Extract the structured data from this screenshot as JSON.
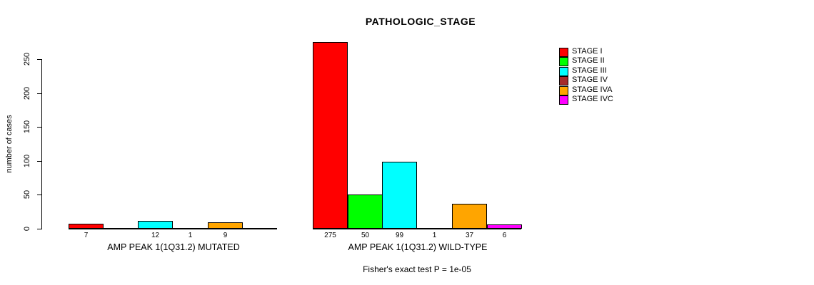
{
  "chart_data": {
    "type": "bar",
    "title": "PATHOLOGIC_STAGE",
    "ylabel": "number of cases",
    "ylim": [
      0,
      250
    ],
    "yticks": [
      0,
      50,
      100,
      150,
      200,
      250
    ],
    "grid": false,
    "legend_position": "right",
    "categories": [
      "AMP PEAK 1(1Q31.2) MUTATED",
      "AMP PEAK 1(1Q31.2) WILD-TYPE"
    ],
    "series": [
      {
        "name": "STAGE I",
        "color": "#FF0000",
        "values": [
          7,
          275
        ]
      },
      {
        "name": "STAGE II",
        "color": "#00FF00",
        "values": [
          0,
          50
        ]
      },
      {
        "name": "STAGE III",
        "color": "#00FFFF",
        "values": [
          12,
          99
        ]
      },
      {
        "name": "STAGE IV",
        "color": "#A52A2A",
        "values": [
          1,
          1
        ]
      },
      {
        "name": "STAGE IVA",
        "color": "#FFA500",
        "values": [
          9,
          37
        ]
      },
      {
        "name": "STAGE IVC",
        "color": "#FF00FF",
        "values": [
          0,
          6
        ]
      }
    ],
    "bar_label_rule": "value shown under each bar when value > 0",
    "footnote": "Fisher's exact test P = 1e-05"
  }
}
